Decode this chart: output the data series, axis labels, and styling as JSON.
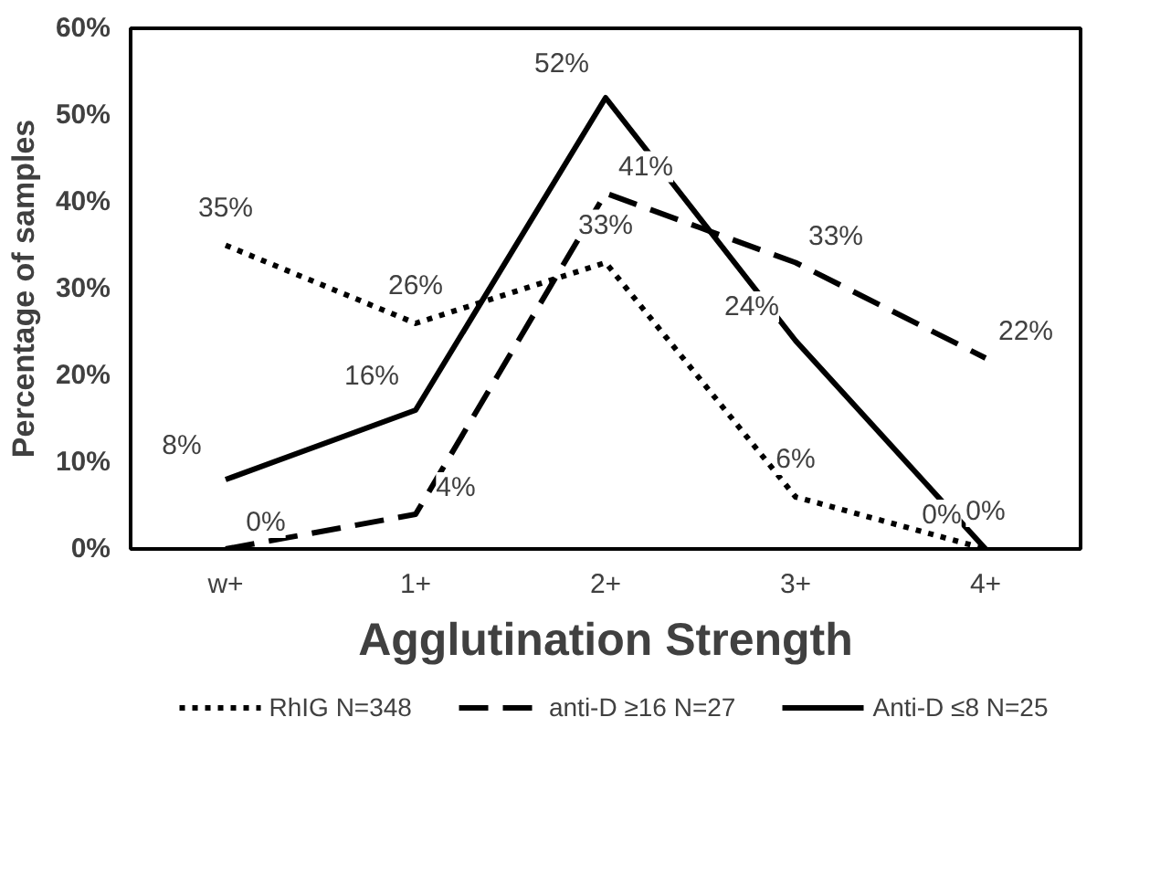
{
  "chart_data": {
    "type": "line",
    "xlabel": "Agglutination Strength",
    "ylabel": "Percentage of samples",
    "categories": [
      "w+",
      "1+",
      "2+",
      "3+",
      "4+"
    ],
    "series": [
      {
        "name": "RhIG N=348",
        "color": "#000000",
        "line_style": "dotted",
        "values": [
          35,
          26,
          33,
          6,
          0
        ],
        "value_labels": [
          "35%",
          "26%",
          "33%",
          "6%",
          "0%"
        ]
      },
      {
        "name": "anti-D ≥16 N=27",
        "color": "#000000",
        "line_style": "dashed",
        "values": [
          0,
          4,
          41,
          33,
          22
        ],
        "value_labels": [
          "0%",
          "4%",
          "41%",
          "33%",
          "22%"
        ]
      },
      {
        "name": "Anti-D ≤8 N=25",
        "color": "#000000",
        "line_style": "solid",
        "values": [
          8,
          16,
          52,
          24,
          0
        ],
        "value_labels": [
          "8%",
          "16%",
          "52%",
          "24%",
          "0%"
        ]
      }
    ],
    "ylim": [
      0,
      60
    ],
    "yticks": [
      {
        "value": 0,
        "label": "0%"
      },
      {
        "value": 10,
        "label": "10%"
      },
      {
        "value": 20,
        "label": "20%"
      },
      {
        "value": 30,
        "label": "30%"
      },
      {
        "value": 40,
        "label": "40%"
      },
      {
        "value": 50,
        "label": "50%"
      },
      {
        "value": 60,
        "label": "60%"
      }
    ],
    "data_labels": true,
    "grid": false,
    "legend": "bottom",
    "marker": "none"
  }
}
